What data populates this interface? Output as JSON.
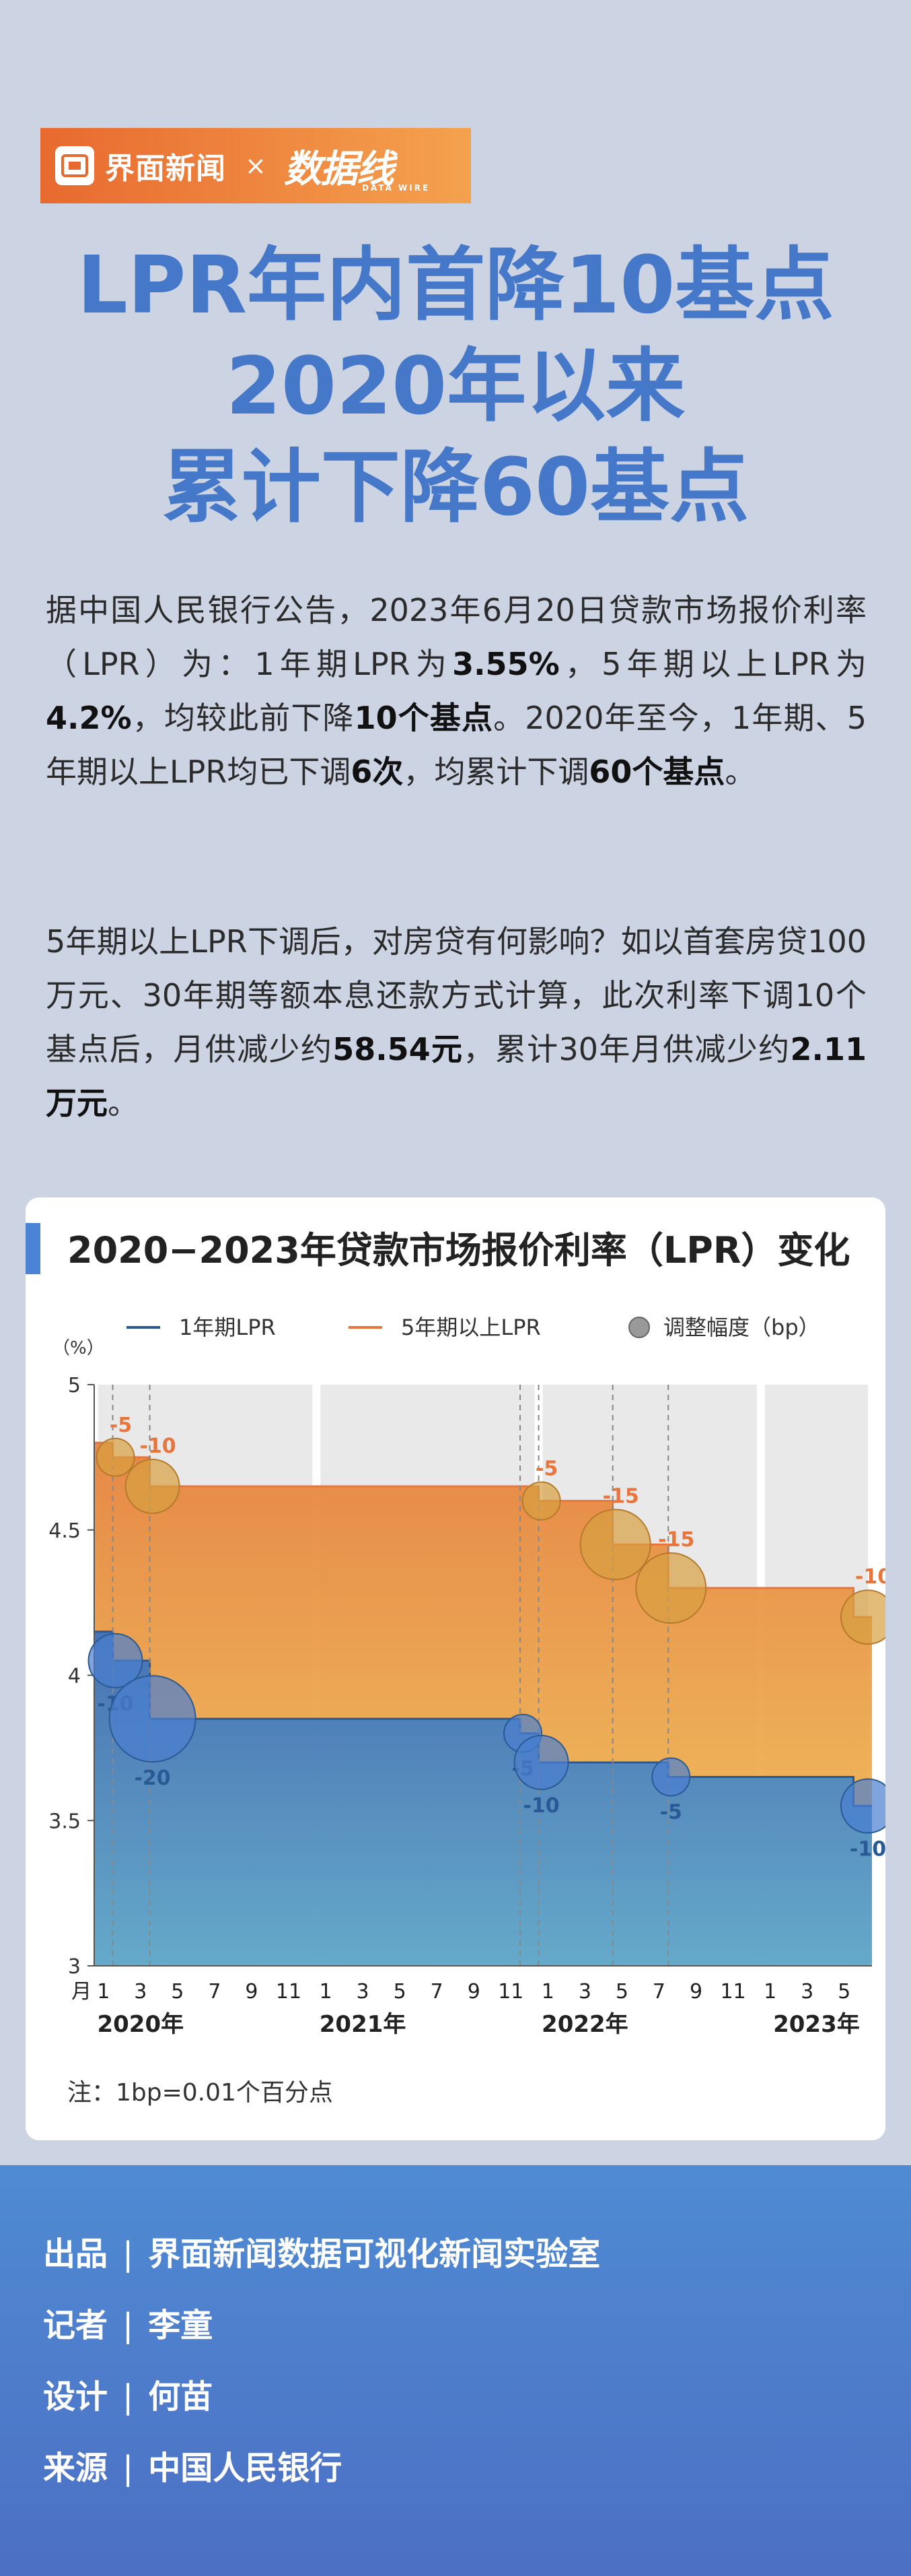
{
  "brand": {
    "left": "界面新闻",
    "times": "×",
    "right": "数据线",
    "right_sub": "DATA WIRE"
  },
  "headline": [
    "LPR年内首降10基点",
    "2020年以来",
    "累计下降60基点"
  ],
  "para1": [
    {
      "t": "据中国人民银行公告，2023年6月20日贷款市场报价利率（LPR）为：1年期LPR为"
    },
    {
      "t": "3.55%",
      "b": true
    },
    {
      "t": "，5年期以上LPR为"
    },
    {
      "t": "4.2%",
      "b": true
    },
    {
      "t": "，均较此前下降"
    },
    {
      "t": "10个基点",
      "b": true
    },
    {
      "t": "。2020年至今，1年期、5年期以上LPR均已下调"
    },
    {
      "t": "6次",
      "b": true
    },
    {
      "t": "，均累计下调"
    },
    {
      "t": "60个基点",
      "b": true
    },
    {
      "t": "。"
    }
  ],
  "para2": [
    {
      "t": "5年期以上LPR下调后，对房贷有何影响？如以首套房贷100万元、30年期等额本息还款方式计算，此次利率下调10个基点后，月供减少约"
    },
    {
      "t": "58.54元",
      "b": true
    },
    {
      "t": "，累计30年月供减少约"
    },
    {
      "t": "2.11万元",
      "b": true
    },
    {
      "t": "。"
    }
  ],
  "chart_data": {
    "type": "line",
    "title": "2020−2023年贷款市场报价利率（LPR）变化",
    "ylabel": "（%）",
    "ylim": [
      3,
      5
    ],
    "yticks": [
      "3",
      "3.5",
      "4",
      "4.5",
      "5"
    ],
    "xlabel_prefix": "月",
    "month_ticks": [
      1,
      3,
      5,
      7,
      9,
      11
    ],
    "years": [
      "2020年",
      "2021年",
      "2022年",
      "2023年"
    ],
    "x_range": [
      "2020-01",
      "2023-06"
    ],
    "legend": [
      "1年期LPR",
      "5年期以上LPR",
      "调整幅度（bp）"
    ],
    "colors": {
      "one_year": "#2a5a96",
      "five_year": "#e8763c",
      "bubble": "#4a7fd0",
      "text_cut": "#e8763c",
      "text_cut_blue": "#2a5a96"
    },
    "series": [
      {
        "name": "1年期LPR",
        "steps": [
          [
            "2020-01",
            4.15
          ],
          [
            "2020-02",
            4.05
          ],
          [
            "2020-04",
            3.85
          ],
          [
            "2021-12",
            3.8
          ],
          [
            "2022-01",
            3.7
          ],
          [
            "2022-08",
            3.65
          ],
          [
            "2023-06",
            3.55
          ]
        ]
      },
      {
        "name": "5年期以上LPR",
        "steps": [
          [
            "2020-01",
            4.8
          ],
          [
            "2020-02",
            4.75
          ],
          [
            "2020-04",
            4.65
          ],
          [
            "2022-01",
            4.6
          ],
          [
            "2022-05",
            4.45
          ],
          [
            "2022-08",
            4.3
          ],
          [
            "2023-06",
            4.2
          ]
        ]
      }
    ],
    "adjustments": [
      {
        "date": "2020-02",
        "series": "1年期LPR",
        "bp": "-10",
        "value": 4.05
      },
      {
        "date": "2020-04",
        "series": "1年期LPR",
        "bp": "-20",
        "value": 3.85
      },
      {
        "date": "2021-12",
        "series": "1年期LPR",
        "bp": "-5",
        "value": 3.8
      },
      {
        "date": "2022-01",
        "series": "1年期LPR",
        "bp": "-10",
        "value": 3.7
      },
      {
        "date": "2022-08",
        "series": "1年期LPR",
        "bp": "-5",
        "value": 3.65
      },
      {
        "date": "2023-06",
        "series": "1年期LPR",
        "bp": "-10",
        "value": 3.55
      },
      {
        "date": "2020-02",
        "series": "5年期以上LPR",
        "bp": "-5",
        "value": 4.75
      },
      {
        "date": "2020-04",
        "series": "5年期以上LPR",
        "bp": "-10",
        "value": 4.65
      },
      {
        "date": "2022-01",
        "series": "5年期以上LPR",
        "bp": "-5",
        "value": 4.6
      },
      {
        "date": "2022-05",
        "series": "5年期以上LPR",
        "bp": "-15",
        "value": 4.45
      },
      {
        "date": "2022-08",
        "series": "5年期以上LPR",
        "bp": "-15",
        "value": 4.3
      },
      {
        "date": "2023-06",
        "series": "5年期以上LPR",
        "bp": "-10",
        "value": 4.2
      }
    ],
    "note": "注：1bp=0.01个百分点"
  },
  "credits": [
    {
      "label": "出品",
      "sep": "|",
      "value": "界面新闻数据可视化新闻实验室"
    },
    {
      "label": "记者",
      "sep": "|",
      "value": "李童"
    },
    {
      "label": "设计",
      "sep": "|",
      "value": "何苗"
    },
    {
      "label": "来源",
      "sep": "|",
      "value": "中国人民银行"
    }
  ]
}
